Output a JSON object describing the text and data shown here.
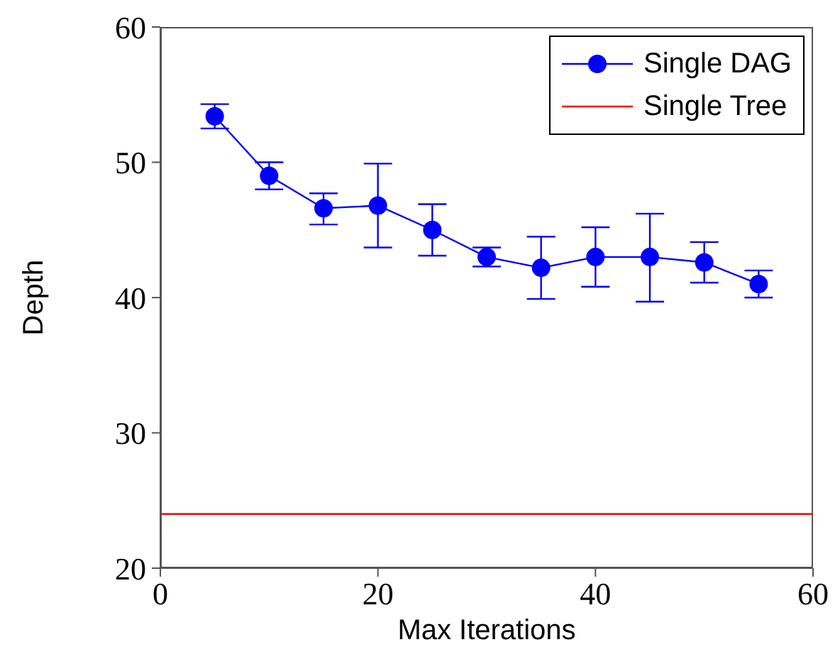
{
  "chart_data": {
    "type": "line",
    "xlabel": "Max Iterations",
    "ylabel": "Depth",
    "xlim": [
      0,
      60
    ],
    "xticks": [
      0,
      20,
      40,
      60
    ],
    "ylim": [
      20,
      60
    ],
    "yticks": [
      20,
      30,
      40,
      50,
      60
    ],
    "grid": false,
    "legend": "top right",
    "series": [
      {
        "name": "Single DAG",
        "color": "#0000ff",
        "marker": "circle",
        "x": [
          5,
          10,
          15,
          20,
          25,
          30,
          35,
          40,
          45,
          50,
          55
        ],
        "values": [
          53.4,
          49.0,
          46.6,
          46.8,
          45.0,
          43.0,
          42.2,
          43.0,
          43.0,
          42.6,
          41.0
        ],
        "errors": [
          [
            52.5,
            54.3
          ],
          [
            48.0,
            50.0
          ],
          [
            45.4,
            47.7
          ],
          [
            43.7,
            49.9
          ],
          [
            43.1,
            46.9
          ],
          [
            42.3,
            43.7
          ],
          [
            39.9,
            44.5
          ],
          [
            40.8,
            45.2
          ],
          [
            39.7,
            46.2
          ],
          [
            41.1,
            44.1
          ],
          [
            40.0,
            42.0
          ]
        ]
      },
      {
        "name": "Single Tree",
        "color": "#ff0000",
        "marker": "none",
        "x": [
          0,
          60
        ],
        "values": [
          24,
          24
        ]
      }
    ]
  }
}
